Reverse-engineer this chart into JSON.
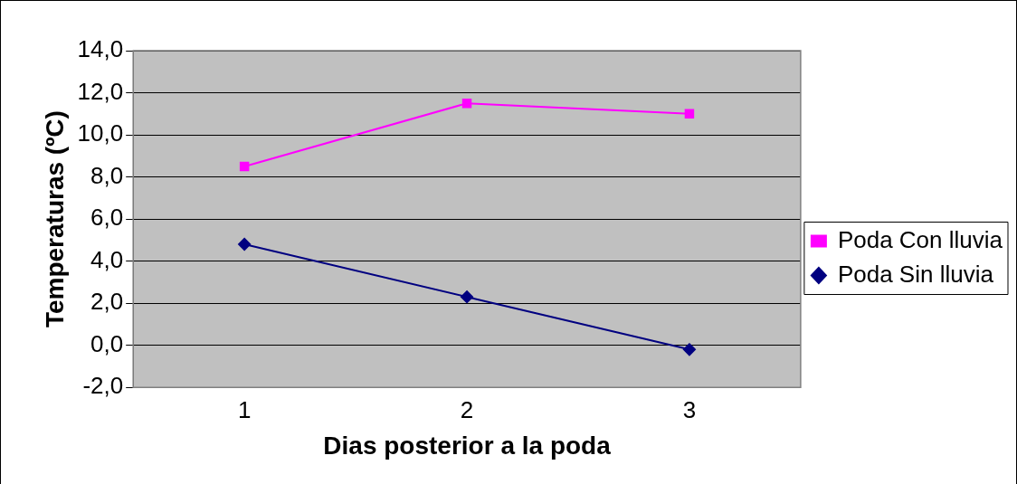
{
  "chart_data": {
    "type": "line",
    "xlabel": "Dias posterior a la poda",
    "ylabel": "Temperaturas (ºC)",
    "categories": [
      "1",
      "2",
      "3"
    ],
    "series": [
      {
        "name": "Poda Con lluvia",
        "color": "#ff00ff",
        "marker": "square",
        "values": [
          8.5,
          11.5,
          11.0
        ]
      },
      {
        "name": "Poda Sin lluvia",
        "color": "#000080",
        "marker": "diamond",
        "values": [
          4.8,
          2.3,
          -0.2
        ]
      }
    ],
    "ylim": [
      -2,
      14
    ],
    "yticks": [
      {
        "value": -2,
        "label": "-2,0"
      },
      {
        "value": 0,
        "label": "0,0"
      },
      {
        "value": 2,
        "label": "2,0"
      },
      {
        "value": 4,
        "label": "4,0"
      },
      {
        "value": 6,
        "label": "6,0"
      },
      {
        "value": 8,
        "label": "8,0"
      },
      {
        "value": 10,
        "label": "10,0"
      },
      {
        "value": 12,
        "label": "12,0"
      },
      {
        "value": 14,
        "label": "14,0"
      }
    ],
    "grid": "y",
    "legend": "right",
    "line_style": "solid"
  }
}
